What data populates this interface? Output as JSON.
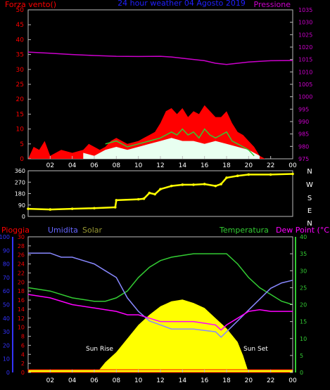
{
  "chart_data": [
    {
      "type": "line",
      "title": "24 hour weather 04 Agosto 2019",
      "left_axis_label": "Forza vento()",
      "right_axis_label": "Pressione",
      "x_ticks": [
        "02",
        "04",
        "06",
        "08",
        "10",
        "12",
        "14",
        "16",
        "18",
        "20",
        "22",
        "00"
      ],
      "left_ticks": [
        0,
        5,
        10,
        15,
        20,
        25,
        30,
        35,
        40,
        45,
        50
      ],
      "right_ticks": [
        975,
        980,
        985,
        990,
        995,
        1000,
        1005,
        1010,
        1015,
        1020,
        1025,
        1030,
        1035
      ],
      "left_range": [
        0,
        50
      ],
      "right_range": [
        975,
        1035
      ],
      "grid": false,
      "colors": {
        "wind_gust": "#ff0000",
        "wind_avg": "#e8fff0",
        "wind_line": "#33cc33",
        "pressure": "#cc00cc",
        "axis_left": "#ff0000",
        "axis_right": "#cc00cc",
        "title": "#2020ff"
      },
      "series": [
        {
          "key": "pressure",
          "axis": "right",
          "x": [
            0,
            2,
            4,
            6,
            8,
            10,
            12,
            13,
            14,
            16,
            17,
            18,
            19,
            20,
            22,
            24
          ],
          "y": [
            1018,
            1017.5,
            1017,
            1016.6,
            1016.3,
            1016.2,
            1016.3,
            1016,
            1015.5,
            1014.5,
            1013.5,
            1013,
            1013.5,
            1014,
            1014.5,
            1014.6
          ]
        },
        {
          "key": "wind_gust",
          "axis": "left",
          "x": [
            0,
            0.5,
            1,
            1.5,
            2,
            3,
            4,
            5,
            5.5,
            6,
            6.5,
            7,
            7.5,
            8,
            9,
            10,
            10.5,
            11,
            11.5,
            12,
            12.5,
            13,
            13.5,
            14,
            14.5,
            15,
            15.5,
            16,
            16.5,
            17,
            17.5,
            18,
            18.5,
            19,
            19.5,
            20,
            20.5,
            21,
            21.5,
            22,
            23,
            24
          ],
          "y": [
            0,
            4,
            3,
            6,
            1,
            3,
            2,
            3,
            5,
            4,
            3,
            4,
            6,
            7,
            5,
            6,
            7,
            8,
            9,
            12,
            16,
            17,
            15,
            17,
            14,
            16,
            15,
            18,
            16,
            14,
            14,
            16,
            12,
            9,
            8,
            6,
            4,
            1,
            0,
            0,
            0,
            0
          ]
        },
        {
          "key": "wind_line",
          "axis": "left",
          "x": [
            7,
            8,
            9,
            10,
            11,
            12,
            12.5,
            13,
            13.5,
            14,
            14.5,
            15,
            15.5,
            16,
            16.5,
            17,
            17.5,
            18,
            18.5,
            19,
            19.5,
            20,
            20.5
          ],
          "y": [
            5,
            6,
            4,
            5,
            6,
            7,
            8,
            9,
            8,
            10,
            8,
            9,
            7,
            10,
            8,
            7,
            8,
            9,
            6,
            5,
            4,
            3,
            1
          ]
        },
        {
          "key": "wind_avg",
          "axis": "left",
          "x": [
            5,
            6,
            7,
            8,
            9,
            10,
            11,
            12,
            13,
            14,
            15,
            16,
            17,
            18,
            19,
            20,
            21
          ],
          "y": [
            2,
            1,
            3,
            4,
            3,
            4,
            5,
            6,
            7,
            6,
            6,
            5,
            6,
            5,
            4,
            3,
            1
          ]
        }
      ]
    },
    {
      "type": "scatter",
      "y_ticks": [
        0,
        90,
        180,
        270,
        360
      ],
      "y_range": [
        0,
        360
      ],
      "compass_labels": [
        "N",
        "W",
        "S",
        "E",
        "N"
      ],
      "color": "#ffff00",
      "x_ticks": [
        "02",
        "04",
        "06",
        "08",
        "10",
        "12",
        "14",
        "16",
        "18",
        "20",
        "22",
        "00"
      ],
      "series": [
        {
          "key": "wind_direction",
          "x": [
            0,
            2,
            4,
            6,
            7.9,
            8,
            10,
            10.5,
            11,
            11.5,
            12,
            13,
            14,
            15,
            16,
            17,
            17.5,
            18,
            19,
            20,
            22,
            24
          ],
          "y": [
            60,
            55,
            60,
            65,
            72,
            128,
            135,
            140,
            185,
            175,
            215,
            240,
            250,
            250,
            255,
            240,
            255,
            305,
            320,
            330,
            330,
            335
          ]
        }
      ]
    },
    {
      "type": "line",
      "legend": [
        "Pioggia",
        "Umidita",
        "Solar",
        "Temperatura",
        "Dew Point (°C)"
      ],
      "annotations": [
        "Sun Rise",
        "Sun Set"
      ],
      "x_ticks": [
        "02",
        "04",
        "06",
        "08",
        "10",
        "12",
        "14",
        "16",
        "18",
        "20",
        "22",
        "00"
      ],
      "humidity_ticks": [
        0,
        10,
        20,
        30,
        40,
        50,
        60,
        70,
        80,
        90,
        100
      ],
      "rain_ticks": [
        0,
        2,
        4,
        6,
        8,
        10,
        12,
        14,
        16,
        18,
        20,
        22,
        24,
        26,
        28,
        30
      ],
      "temp_ticks": [
        0,
        5,
        10,
        15,
        20,
        25,
        30,
        35,
        40
      ],
      "ranges": {
        "humidity": [
          0,
          100
        ],
        "rain": [
          0,
          30
        ],
        "temp": [
          0,
          40
        ]
      },
      "colors": {
        "rain": "#ff0000",
        "humidity": "#8888ff",
        "solar": "#ffff00",
        "temperature": "#33cc33",
        "dewpoint": "#ff00ff",
        "axis_humidity": "#3333ff",
        "axis_rain": "#ff0000",
        "axis_temp": "#33cc33",
        "axis_solar": "#999933"
      },
      "series": [
        {
          "key": "solar",
          "axis": "temp",
          "x": [
            0,
            6,
            6.5,
            7,
            8,
            9,
            10,
            11,
            12,
            13,
            14,
            15,
            16,
            17,
            18,
            19,
            19.5,
            20,
            24
          ],
          "y": [
            0,
            0,
            1,
            3,
            6,
            10,
            14,
            17,
            19.5,
            21,
            21.5,
            20.5,
            19,
            16,
            13,
            9,
            5,
            0,
            0
          ]
        },
        {
          "key": "rain",
          "axis": "temp",
          "x": [
            0,
            24
          ],
          "y": [
            0.8,
            0.8
          ]
        },
        {
          "key": "temperature",
          "axis": "temp",
          "x": [
            0,
            2,
            4,
            6,
            7,
            8,
            9,
            10,
            11,
            12,
            13,
            14,
            15,
            16,
            17,
            18,
            19,
            20,
            21,
            22,
            23,
            24
          ],
          "y": [
            25,
            24,
            22,
            21,
            21,
            22,
            24,
            28,
            31,
            33,
            34,
            34.5,
            35,
            35,
            35,
            35,
            32,
            28,
            25,
            23,
            21,
            20
          ]
        },
        {
          "key": "humidity",
          "axis": "humidity",
          "x": [
            0,
            2,
            3,
            4,
            6,
            7,
            8,
            9,
            10,
            11,
            12,
            13,
            14,
            15,
            16,
            17,
            17.5,
            18,
            19,
            20,
            21,
            22,
            23,
            24
          ],
          "y": [
            88,
            88,
            85,
            85,
            80,
            75,
            70,
            55,
            45,
            38,
            35,
            32,
            32,
            32,
            31,
            30,
            26,
            30,
            38,
            46,
            54,
            62,
            66,
            68
          ]
        },
        {
          "key": "dewpoint",
          "axis": "temp",
          "x": [
            0,
            2,
            4,
            6,
            7,
            8,
            9,
            10,
            11,
            12,
            13,
            14,
            15,
            16,
            17,
            17.5,
            18,
            19,
            20,
            21,
            22,
            23,
            24
          ],
          "y": [
            23,
            22,
            20,
            19,
            18.5,
            18,
            17,
            17,
            16,
            15,
            15,
            15,
            15,
            14.5,
            14,
            12.5,
            14,
            16,
            18,
            18.5,
            18,
            18,
            18
          ]
        }
      ]
    }
  ]
}
